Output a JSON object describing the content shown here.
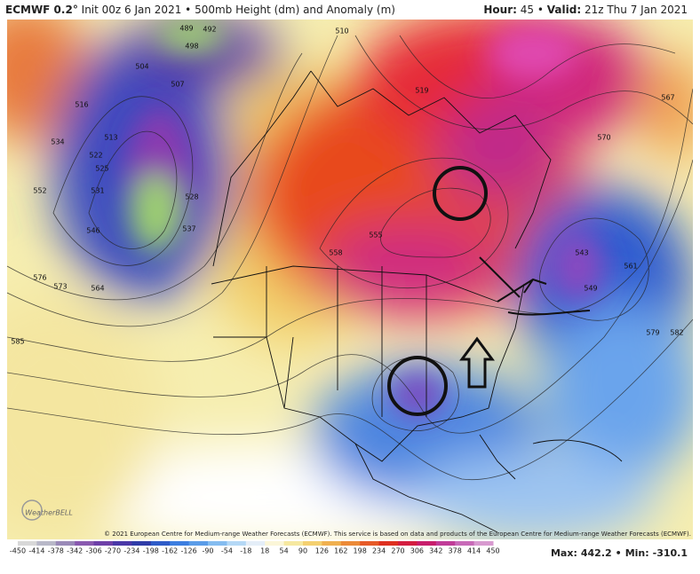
{
  "header": {
    "model": "ECMWF 0.2°",
    "init": "Init 00z 6 Jan 2021",
    "separator": "•",
    "product": "500mb Height (dm) and Anomaly (m)",
    "hour_label": "Hour:",
    "hour": 45,
    "valid_label": "Valid:",
    "valid": "21z Thu 7 Jan 2021"
  },
  "map": {
    "contour_labels": [
      489,
      492,
      498,
      504,
      507,
      510,
      513,
      516,
      519,
      522,
      525,
      528,
      531,
      534,
      537,
      543,
      546,
      549,
      552,
      555,
      558,
      561,
      564,
      567,
      570,
      573,
      576,
      579,
      582,
      585
    ],
    "copyright": "© 2021 European Centre for Medium-range Weather Forecasts (ECMWF). This service is based on data and products of the European Centre for Medium-range Weather Forecasts (ECMWF).",
    "logo": "WeatherBELL"
  },
  "colorbar": {
    "labels": [
      -450,
      -414,
      -378,
      -342,
      -306,
      -270,
      -234,
      -198,
      -162,
      -126,
      -90,
      -54,
      -18,
      18,
      54,
      90,
      126,
      162,
      198,
      234,
      270,
      306,
      342,
      378,
      414,
      450
    ]
  },
  "stats": {
    "max_label": "Max:",
    "max": 442.2,
    "separator": "•",
    "min_label": "Min:",
    "min": -310.1
  }
}
